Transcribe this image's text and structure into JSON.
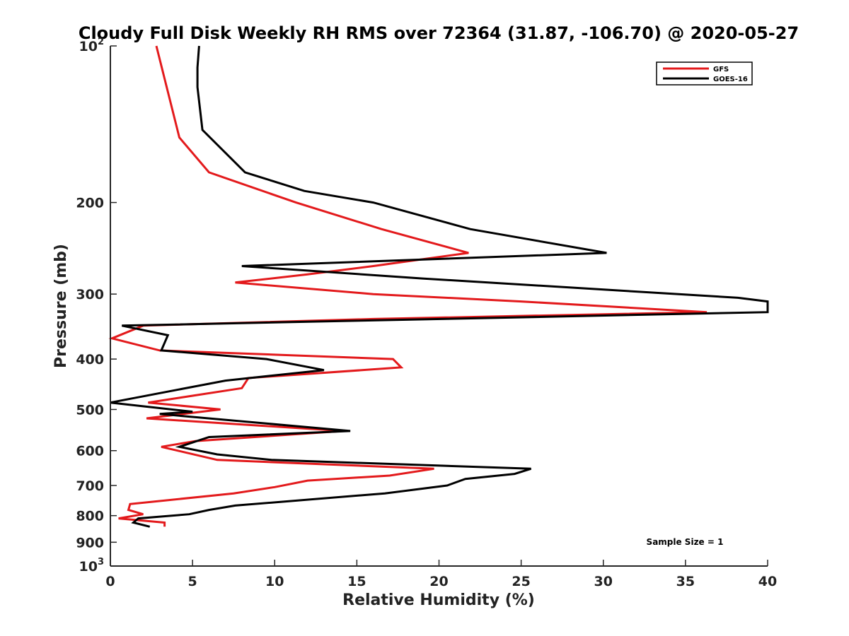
{
  "chart_data": {
    "type": "line",
    "title": "Cloudy Full Disk Weekly RH RMS over 72364 (31.87, -106.70) @ 2020-05-27",
    "xlabel": "Relative Humidity (%)",
    "ylabel": "Pressure (mb)",
    "xlim": [
      0,
      40
    ],
    "ylim": [
      100,
      1000
    ],
    "y_scale": "log",
    "y_reversed": true,
    "grid": false,
    "legend_position": "top-right",
    "x_ticks": [
      "0",
      "5",
      "10",
      "15",
      "20",
      "25",
      "30",
      "35",
      "40"
    ],
    "y_ticks": [
      {
        "value": 100,
        "base": "10",
        "exp": "2"
      },
      {
        "value": 200,
        "label": "200"
      },
      {
        "value": 300,
        "label": "300"
      },
      {
        "value": 400,
        "label": "400"
      },
      {
        "value": 500,
        "label": "500"
      },
      {
        "value": 600,
        "label": "600"
      },
      {
        "value": 700,
        "label": "700"
      },
      {
        "value": 800,
        "label": "800"
      },
      {
        "value": 900,
        "label": "900"
      },
      {
        "value": 1000,
        "base": "10",
        "exp": "3"
      }
    ],
    "series": [
      {
        "name": "GFS",
        "color": "#e31a1c",
        "points": [
          [
            2.8,
            100
          ],
          [
            4.2,
            150
          ],
          [
            6.0,
            175
          ],
          [
            11.3,
            200
          ],
          [
            16.5,
            225
          ],
          [
            21.8,
            250
          ],
          [
            16.0,
            265
          ],
          [
            12.0,
            275
          ],
          [
            7.6,
            285
          ],
          [
            16.0,
            300
          ],
          [
            25.0,
            310
          ],
          [
            36.3,
            325
          ],
          [
            16.0,
            335
          ],
          [
            2.0,
            345
          ],
          [
            0.1,
            365
          ],
          [
            3.0,
            385
          ],
          [
            17.2,
            400
          ],
          [
            17.7,
            415
          ],
          [
            8.4,
            435
          ],
          [
            8.0,
            455
          ],
          [
            2.3,
            485
          ],
          [
            6.7,
            500
          ],
          [
            2.2,
            520
          ],
          [
            14.2,
            550
          ],
          [
            5.2,
            575
          ],
          [
            3.1,
            590
          ],
          [
            6.5,
            625
          ],
          [
            19.7,
            650
          ],
          [
            17.0,
            670
          ],
          [
            12.0,
            685
          ],
          [
            10.0,
            705
          ],
          [
            7.5,
            725
          ],
          [
            1.2,
            760
          ],
          [
            1.1,
            780
          ],
          [
            2.0,
            795
          ],
          [
            0.5,
            810
          ],
          [
            3.3,
            825
          ],
          [
            3.3,
            840
          ]
        ]
      },
      {
        "name": "GOES-16",
        "color": "#000000",
        "points": [
          [
            5.4,
            100
          ],
          [
            5.3,
            110
          ],
          [
            5.3,
            120
          ],
          [
            5.6,
            145
          ],
          [
            8.2,
            175
          ],
          [
            11.8,
            190
          ],
          [
            16.0,
            200
          ],
          [
            21.9,
            225
          ],
          [
            30.2,
            250
          ],
          [
            8.0,
            265
          ],
          [
            19.0,
            280
          ],
          [
            38.2,
            305
          ],
          [
            40.0,
            310
          ],
          [
            40.0,
            325
          ],
          [
            0.7,
            345
          ],
          [
            3.5,
            360
          ],
          [
            3.1,
            385
          ],
          [
            9.5,
            400
          ],
          [
            13.0,
            420
          ],
          [
            7.0,
            440
          ],
          [
            0.0,
            485
          ],
          [
            5.0,
            505
          ],
          [
            3.0,
            510
          ],
          [
            14.6,
            550
          ],
          [
            6.0,
            565
          ],
          [
            4.2,
            590
          ],
          [
            6.5,
            610
          ],
          [
            9.8,
            625
          ],
          [
            25.6,
            650
          ],
          [
            24.6,
            665
          ],
          [
            21.6,
            680
          ],
          [
            20.5,
            700
          ],
          [
            16.7,
            725
          ],
          [
            7.6,
            765
          ],
          [
            6.0,
            780
          ],
          [
            4.8,
            795
          ],
          [
            1.7,
            810
          ],
          [
            1.4,
            825
          ],
          [
            2.4,
            840
          ]
        ]
      }
    ],
    "annotation": "Sample Size = 1"
  }
}
